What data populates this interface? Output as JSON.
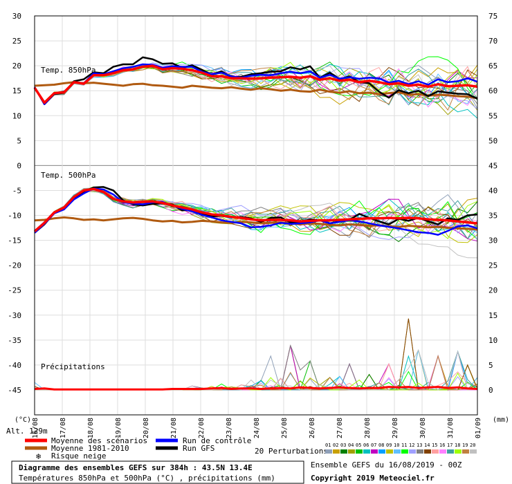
{
  "chart_data": {
    "type": "line",
    "x_dates": [
      "16/08",
      "17/08",
      "18/08",
      "19/08",
      "20/08",
      "21/08",
      "22/08",
      "23/08",
      "24/08",
      "25/08",
      "26/08",
      "27/08",
      "28/08",
      "29/08",
      "30/08",
      "31/08",
      "01/09"
    ],
    "left_axis_unit": "(°C)",
    "right_axis_unit": "(mm)",
    "left_ticks": [
      30,
      25,
      20,
      15,
      10,
      5,
      0,
      -5,
      -10,
      -15,
      -20,
      -25,
      -30,
      -35,
      -40,
      -45
    ],
    "right_ticks": [
      75,
      70,
      65,
      60,
      55,
      50,
      45,
      40,
      35,
      30,
      25,
      20,
      15,
      10,
      5,
      0
    ],
    "left_ylim": [
      -50,
      30
    ],
    "panels": {
      "t850": {
        "label": "Temp. 850hPa",
        "gfs": [
          15.7,
          12.3,
          14.3,
          14.6,
          16.9,
          17.3,
          18.7,
          18.5,
          19.8,
          20.3,
          20.3,
          21.7,
          21.3,
          20.4,
          20.5,
          19.6,
          20.1,
          19.2,
          18.2,
          18.9,
          17.7,
          17.8,
          18.3,
          18.5,
          18.8,
          18.9,
          19.7,
          19.3,
          19.9,
          17.6,
          18.6,
          17.3,
          17.9,
          16.7,
          16.5,
          14.8,
          13.6,
          15.1,
          14.5,
          15.0,
          13.9,
          14.9,
          14.6,
          14.4,
          14.3,
          13.4
        ],
        "control": [
          15.7,
          12.3,
          14.4,
          14.8,
          16.7,
          16.5,
          18.5,
          18.3,
          18.9,
          19.5,
          19.8,
          20.3,
          20.2,
          19.6,
          19.9,
          19.8,
          19.8,
          18.8,
          18.3,
          18.6,
          17.9,
          17.6,
          18.0,
          18.2,
          18.1,
          18.5,
          18.8,
          18.5,
          18.9,
          17.6,
          18.2,
          17.4,
          17.7,
          17.4,
          17.6,
          17.5,
          16.6,
          17.0,
          16.3,
          16.9,
          16.2,
          17.3,
          16.7,
          16.9,
          17.5,
          16.8
        ],
        "mean": [
          15.6,
          12.6,
          14.5,
          14.7,
          16.7,
          16.4,
          18.1,
          18.1,
          18.5,
          19.1,
          19.3,
          19.8,
          20.0,
          19.3,
          19.5,
          19.4,
          19.1,
          18.6,
          17.9,
          17.9,
          17.5,
          17.5,
          17.4,
          17.5,
          17.6,
          17.7,
          17.8,
          17.6,
          17.9,
          17.2,
          17.5,
          17.0,
          17.2,
          16.7,
          17.0,
          16.7,
          16.3,
          16.5,
          16.0,
          16.2,
          15.8,
          16.3,
          15.9,
          16.0,
          16.1,
          15.8
        ],
        "clim": [
          16.0,
          16.1,
          16.2,
          16.5,
          16.7,
          16.5,
          16.6,
          16.4,
          16.2,
          16.0,
          16.3,
          16.4,
          16.1,
          16.0,
          15.8,
          15.6,
          16.0,
          15.8,
          15.6,
          15.5,
          15.7,
          15.4,
          15.2,
          15.5,
          15.3,
          15.0,
          15.2,
          14.9,
          14.8,
          15.2,
          14.8,
          14.6,
          14.9,
          14.5,
          14.6,
          14.3,
          14.5,
          14.7,
          14.2,
          14.3,
          14.0,
          14.2,
          14.1,
          13.9,
          13.8,
          13.5
        ],
        "spread_start": 17.0,
        "spread_per_day": 0.42
      },
      "t500": {
        "label": "Temp. 500hPa",
        "gfs": [
          -13.5,
          -11.8,
          -9.5,
          -8.5,
          -6.5,
          -5.2,
          -4.4,
          -4.3,
          -5.0,
          -7.0,
          -7.8,
          -8.0,
          -7.7,
          -7.6,
          -7.8,
          -9.0,
          -8.8,
          -9.6,
          -10.2,
          -10.1,
          -10.4,
          -10.3,
          -10.6,
          -11.3,
          -10.5,
          -10.4,
          -11.4,
          -11.3,
          -10.8,
          -11.0,
          -11.6,
          -11.2,
          -10.9,
          -9.7,
          -10.5,
          -11.2,
          -11.8,
          -10.7,
          -11.1,
          -10.5,
          -11.2,
          -11.8,
          -10.6,
          -10.9,
          -10.0,
          -9.8
        ],
        "control": [
          -13.5,
          -11.7,
          -9.6,
          -8.8,
          -6.8,
          -5.6,
          -4.6,
          -4.8,
          -5.8,
          -7.4,
          -7.6,
          -7.8,
          -7.4,
          -7.3,
          -8.0,
          -8.7,
          -9.2,
          -9.9,
          -10.4,
          -11.0,
          -11.3,
          -11.6,
          -12.4,
          -12.3,
          -12.0,
          -11.5,
          -11.7,
          -11.6,
          -11.4,
          -11.0,
          -11.6,
          -11.3,
          -11.0,
          -11.2,
          -11.6,
          -12.0,
          -12.3,
          -12.6,
          -13.0,
          -13.4,
          -13.5,
          -13.9,
          -13.1,
          -12.2,
          -12.0,
          -12.6
        ],
        "mean": [
          -13.2,
          -11.5,
          -9.4,
          -8.4,
          -6.3,
          -5.0,
          -4.7,
          -5.3,
          -6.7,
          -7.2,
          -7.4,
          -7.3,
          -7.2,
          -7.5,
          -8.0,
          -8.4,
          -8.8,
          -9.4,
          -9.8,
          -10.0,
          -10.3,
          -10.5,
          -10.8,
          -11.0,
          -10.9,
          -10.9,
          -11.0,
          -11.2,
          -11.1,
          -11.0,
          -11.0,
          -10.9,
          -10.8,
          -10.7,
          -10.6,
          -10.6,
          -10.5,
          -10.6,
          -10.5,
          -10.6,
          -10.8,
          -10.9,
          -11.0,
          -11.2,
          -11.4,
          -11.6
        ],
        "clim": [
          -11.0,
          -10.9,
          -10.6,
          -10.4,
          -10.6,
          -10.9,
          -10.8,
          -11.0,
          -10.8,
          -10.6,
          -10.5,
          -10.7,
          -11.0,
          -11.2,
          -11.1,
          -11.4,
          -11.3,
          -11.1,
          -11.2,
          -11.4,
          -11.5,
          -11.3,
          -11.4,
          -11.6,
          -11.5,
          -11.4,
          -11.6,
          -11.8,
          -11.6,
          -11.7,
          -11.9,
          -12.0,
          -11.8,
          -11.9,
          -12.1,
          -12.0,
          -12.2,
          -12.3,
          -12.1,
          -12.2,
          -12.4,
          -12.3,
          -12.5,
          -12.6,
          -12.7,
          -12.8
        ],
        "spread_start": 17.0,
        "spread_per_day": 0.38
      },
      "precip": {
        "label": "Précipitations",
        "mean_mm": [
          0.2,
          0.3,
          0.1,
          0.1,
          0.1,
          0.1,
          0.1,
          0.1,
          0.1,
          0.1,
          0.1,
          0.1,
          0.1,
          0.1,
          0.2,
          0.2,
          0.2,
          0.2,
          0.3,
          0.4,
          0.2,
          0.3,
          0.3,
          0.2,
          0.3,
          0.4,
          0.3,
          0.5,
          0.4,
          0.3,
          0.4,
          0.5,
          0.4,
          0.3,
          0.4,
          0.4,
          0.6,
          0.5,
          0.6,
          0.4,
          0.5,
          0.6,
          0.4,
          0.5,
          0.3,
          0.2
        ],
        "max_mm": [
          1.5,
          0,
          0,
          0,
          0,
          0,
          0,
          0,
          0,
          0,
          0,
          0,
          0,
          0,
          0,
          0.5,
          0.8,
          0.4,
          0.7,
          1.2,
          0.6,
          1.0,
          2.0,
          4.3,
          6.8,
          2.3,
          8.9,
          4.0,
          5.8,
          1.0,
          2.5,
          2.7,
          5.2,
          2.0,
          3.1,
          1.4,
          5.2,
          2.0,
          14.3,
          8.0,
          1.5,
          6.8,
          1.8,
          7.7,
          5.0,
          2.5
        ]
      }
    },
    "legend": {
      "mean_label": "Moyenne des scénarios",
      "clim_label": "Moyenne 1981-2010",
      "snow_label": "Risque neige",
      "control_label": "Run de contrôle",
      "gfs_label": "Run GFS",
      "perturbations_label": "20 Perturbations",
      "perturbation_ids": [
        "01",
        "02",
        "03",
        "04",
        "05",
        "06",
        "07",
        "08",
        "09",
        "10",
        "11",
        "12",
        "13",
        "14",
        "15",
        "16",
        "17",
        "18",
        "19",
        "20"
      ],
      "perturbation_colors": [
        "#8fa0b8",
        "#c8a000",
        "#008000",
        "#a0a000",
        "#00c000",
        "#00c0c0",
        "#c000c0",
        "#00a0ff",
        "#c0c000",
        "#60c0ff",
        "#00ff00",
        "#a0a0ff",
        "#808080",
        "#804000",
        "#ffa0a0",
        "#ff80ff",
        "#40a0a0",
        "#a0ff00",
        "#c08040",
        "#c0c0c0"
      ]
    },
    "info": {
      "alt_label": "Alt. 129m",
      "title_line1": "Diagramme des ensembles GEFS sur 384h : 43.5N 13.4E",
      "title_line2": "Températures 850hPa et 500hPa (°C) , précipitations (mm)",
      "run_label": "Ensemble GEFS du 16/08/2019 - 00Z",
      "copyright": "Copyright 2019 Meteociel.fr"
    },
    "colors": {
      "mean": "#ff0000",
      "clim": "#b05a10",
      "control": "#0000ff",
      "gfs": "#000000",
      "grid": "#dddddd"
    },
    "grid": true
  }
}
